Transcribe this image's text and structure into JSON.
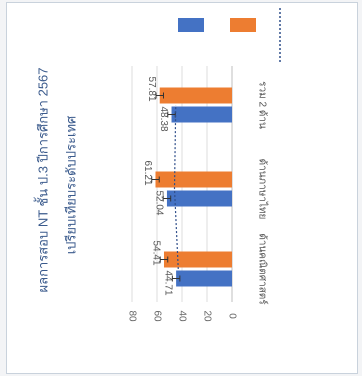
{
  "chart_data": {
    "type": "bar",
    "title": "ผลการสอบ NT ชั้น ป.3 ปีการศึกษา 2567",
    "subtitle": "เปรียบเทียบระดับประเทศ",
    "categories": [
      "ด้านคณิตศาสตร์",
      "ด้านภาษาไทย",
      "รวม 2 ด้าน"
    ],
    "series": [
      {
        "name": "",
        "color": "#4472c4",
        "values": [
          44.71,
          52.04,
          48.38
        ],
        "error": [
          3,
          3,
          3
        ]
      },
      {
        "name": "",
        "color": "#ed7d31",
        "values": [
          54.41,
          61.21,
          57.81
        ],
        "error": [
          3,
          3,
          3
        ]
      }
    ],
    "reference_line": {
      "name": "",
      "style": "dotted",
      "color": "#2f4e8a",
      "values": [
        43,
        46,
        45
      ]
    },
    "value_labels": [
      [
        "44.71",
        "52.04",
        "48.38"
      ],
      [
        "54.41",
        "61.21",
        "57.81"
      ]
    ],
    "ylim": [
      0,
      80
    ],
    "yticks": [
      0,
      20,
      40,
      60,
      80
    ],
    "ytick_labels": [
      "0",
      "20",
      "40",
      "60",
      "80"
    ],
    "grid": true,
    "legend_position": "right",
    "orientation": "rotated-90-clockwise",
    "xlabel": "",
    "ylabel": ""
  }
}
